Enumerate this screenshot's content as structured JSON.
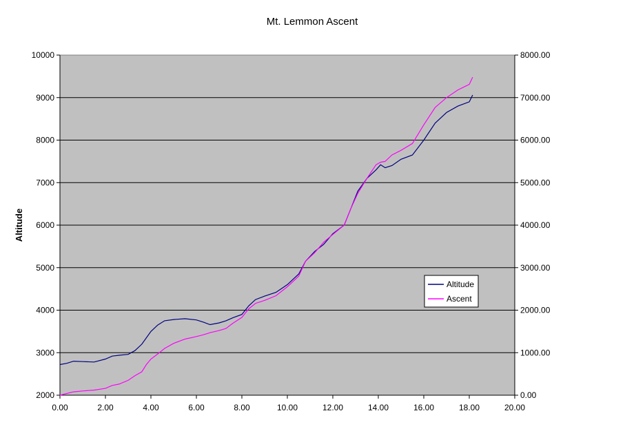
{
  "chart_data": {
    "type": "line",
    "title": "Mt. Lemmon Ascent",
    "xlabel": "",
    "ylabel": "Altitude",
    "y2label": "",
    "xlim": [
      0,
      20
    ],
    "ylim": [
      2000,
      10000
    ],
    "y2lim": [
      0,
      8000
    ],
    "x_ticks": [
      "0.00",
      "2.00",
      "4.00",
      "6.00",
      "8.00",
      "10.00",
      "12.00",
      "14.00",
      "16.00",
      "18.00",
      "20.00"
    ],
    "y_ticks": [
      "2000",
      "3000",
      "4000",
      "5000",
      "6000",
      "7000",
      "8000",
      "9000",
      "10000"
    ],
    "y2_ticks": [
      "0.00",
      "1000.00",
      "2000.00",
      "3000.00",
      "4000.00",
      "5000.00",
      "6000.00",
      "7000.00",
      "8000.00"
    ],
    "grid": "horizontal",
    "plot_background": "#c0c0c0",
    "legend_position": "right",
    "series": [
      {
        "name": "Altitude",
        "axis": "left",
        "color": "#000080",
        "x": [
          0,
          0.3,
          0.6,
          1.0,
          1.5,
          2.0,
          2.3,
          2.6,
          3.0,
          3.3,
          3.6,
          3.8,
          4.0,
          4.3,
          4.6,
          5.0,
          5.5,
          6.0,
          6.3,
          6.6,
          7.0,
          7.3,
          7.6,
          8.0,
          8.3,
          8.6,
          9.0,
          9.5,
          10.0,
          10.5,
          10.8,
          11.2,
          11.6,
          12.0,
          12.5,
          12.8,
          13.1,
          13.5,
          13.9,
          14.1,
          14.3,
          14.6,
          15.0,
          15.5,
          16.0,
          16.5,
          17.0,
          17.5,
          18.0,
          18.15
        ],
        "y": [
          2720,
          2750,
          2800,
          2790,
          2780,
          2850,
          2920,
          2940,
          2960,
          3050,
          3200,
          3350,
          3500,
          3650,
          3750,
          3780,
          3800,
          3770,
          3720,
          3660,
          3700,
          3750,
          3820,
          3900,
          4100,
          4250,
          4330,
          4420,
          4600,
          4850,
          5150,
          5380,
          5550,
          5800,
          6000,
          6400,
          6800,
          7100,
          7300,
          7420,
          7350,
          7400,
          7550,
          7650,
          8000,
          8400,
          8650,
          8800,
          8900,
          9060
        ]
      },
      {
        "name": "Ascent",
        "axis": "right",
        "color": "#ff00ff",
        "x": [
          0,
          0.3,
          0.6,
          1.0,
          1.5,
          2.0,
          2.3,
          2.6,
          3.0,
          3.3,
          3.6,
          3.8,
          4.0,
          4.3,
          4.6,
          5.0,
          5.5,
          6.0,
          6.3,
          6.6,
          7.0,
          7.3,
          7.6,
          8.0,
          8.3,
          8.6,
          9.0,
          9.5,
          10.0,
          10.5,
          10.8,
          11.2,
          11.6,
          12.0,
          12.5,
          12.8,
          13.1,
          13.5,
          13.9,
          14.1,
          14.3,
          14.6,
          15.0,
          15.5,
          16.0,
          16.5,
          17.0,
          17.5,
          18.0,
          18.15
        ],
        "y": [
          0,
          40,
          80,
          100,
          120,
          160,
          230,
          260,
          350,
          460,
          550,
          720,
          850,
          970,
          1100,
          1220,
          1320,
          1380,
          1420,
          1470,
          1520,
          1570,
          1690,
          1830,
          2030,
          2160,
          2230,
          2340,
          2550,
          2800,
          3150,
          3350,
          3600,
          3780,
          4000,
          4400,
          4750,
          5100,
          5420,
          5480,
          5500,
          5650,
          5760,
          5920,
          6360,
          6770,
          7000,
          7180,
          7310,
          7480
        ]
      }
    ]
  }
}
